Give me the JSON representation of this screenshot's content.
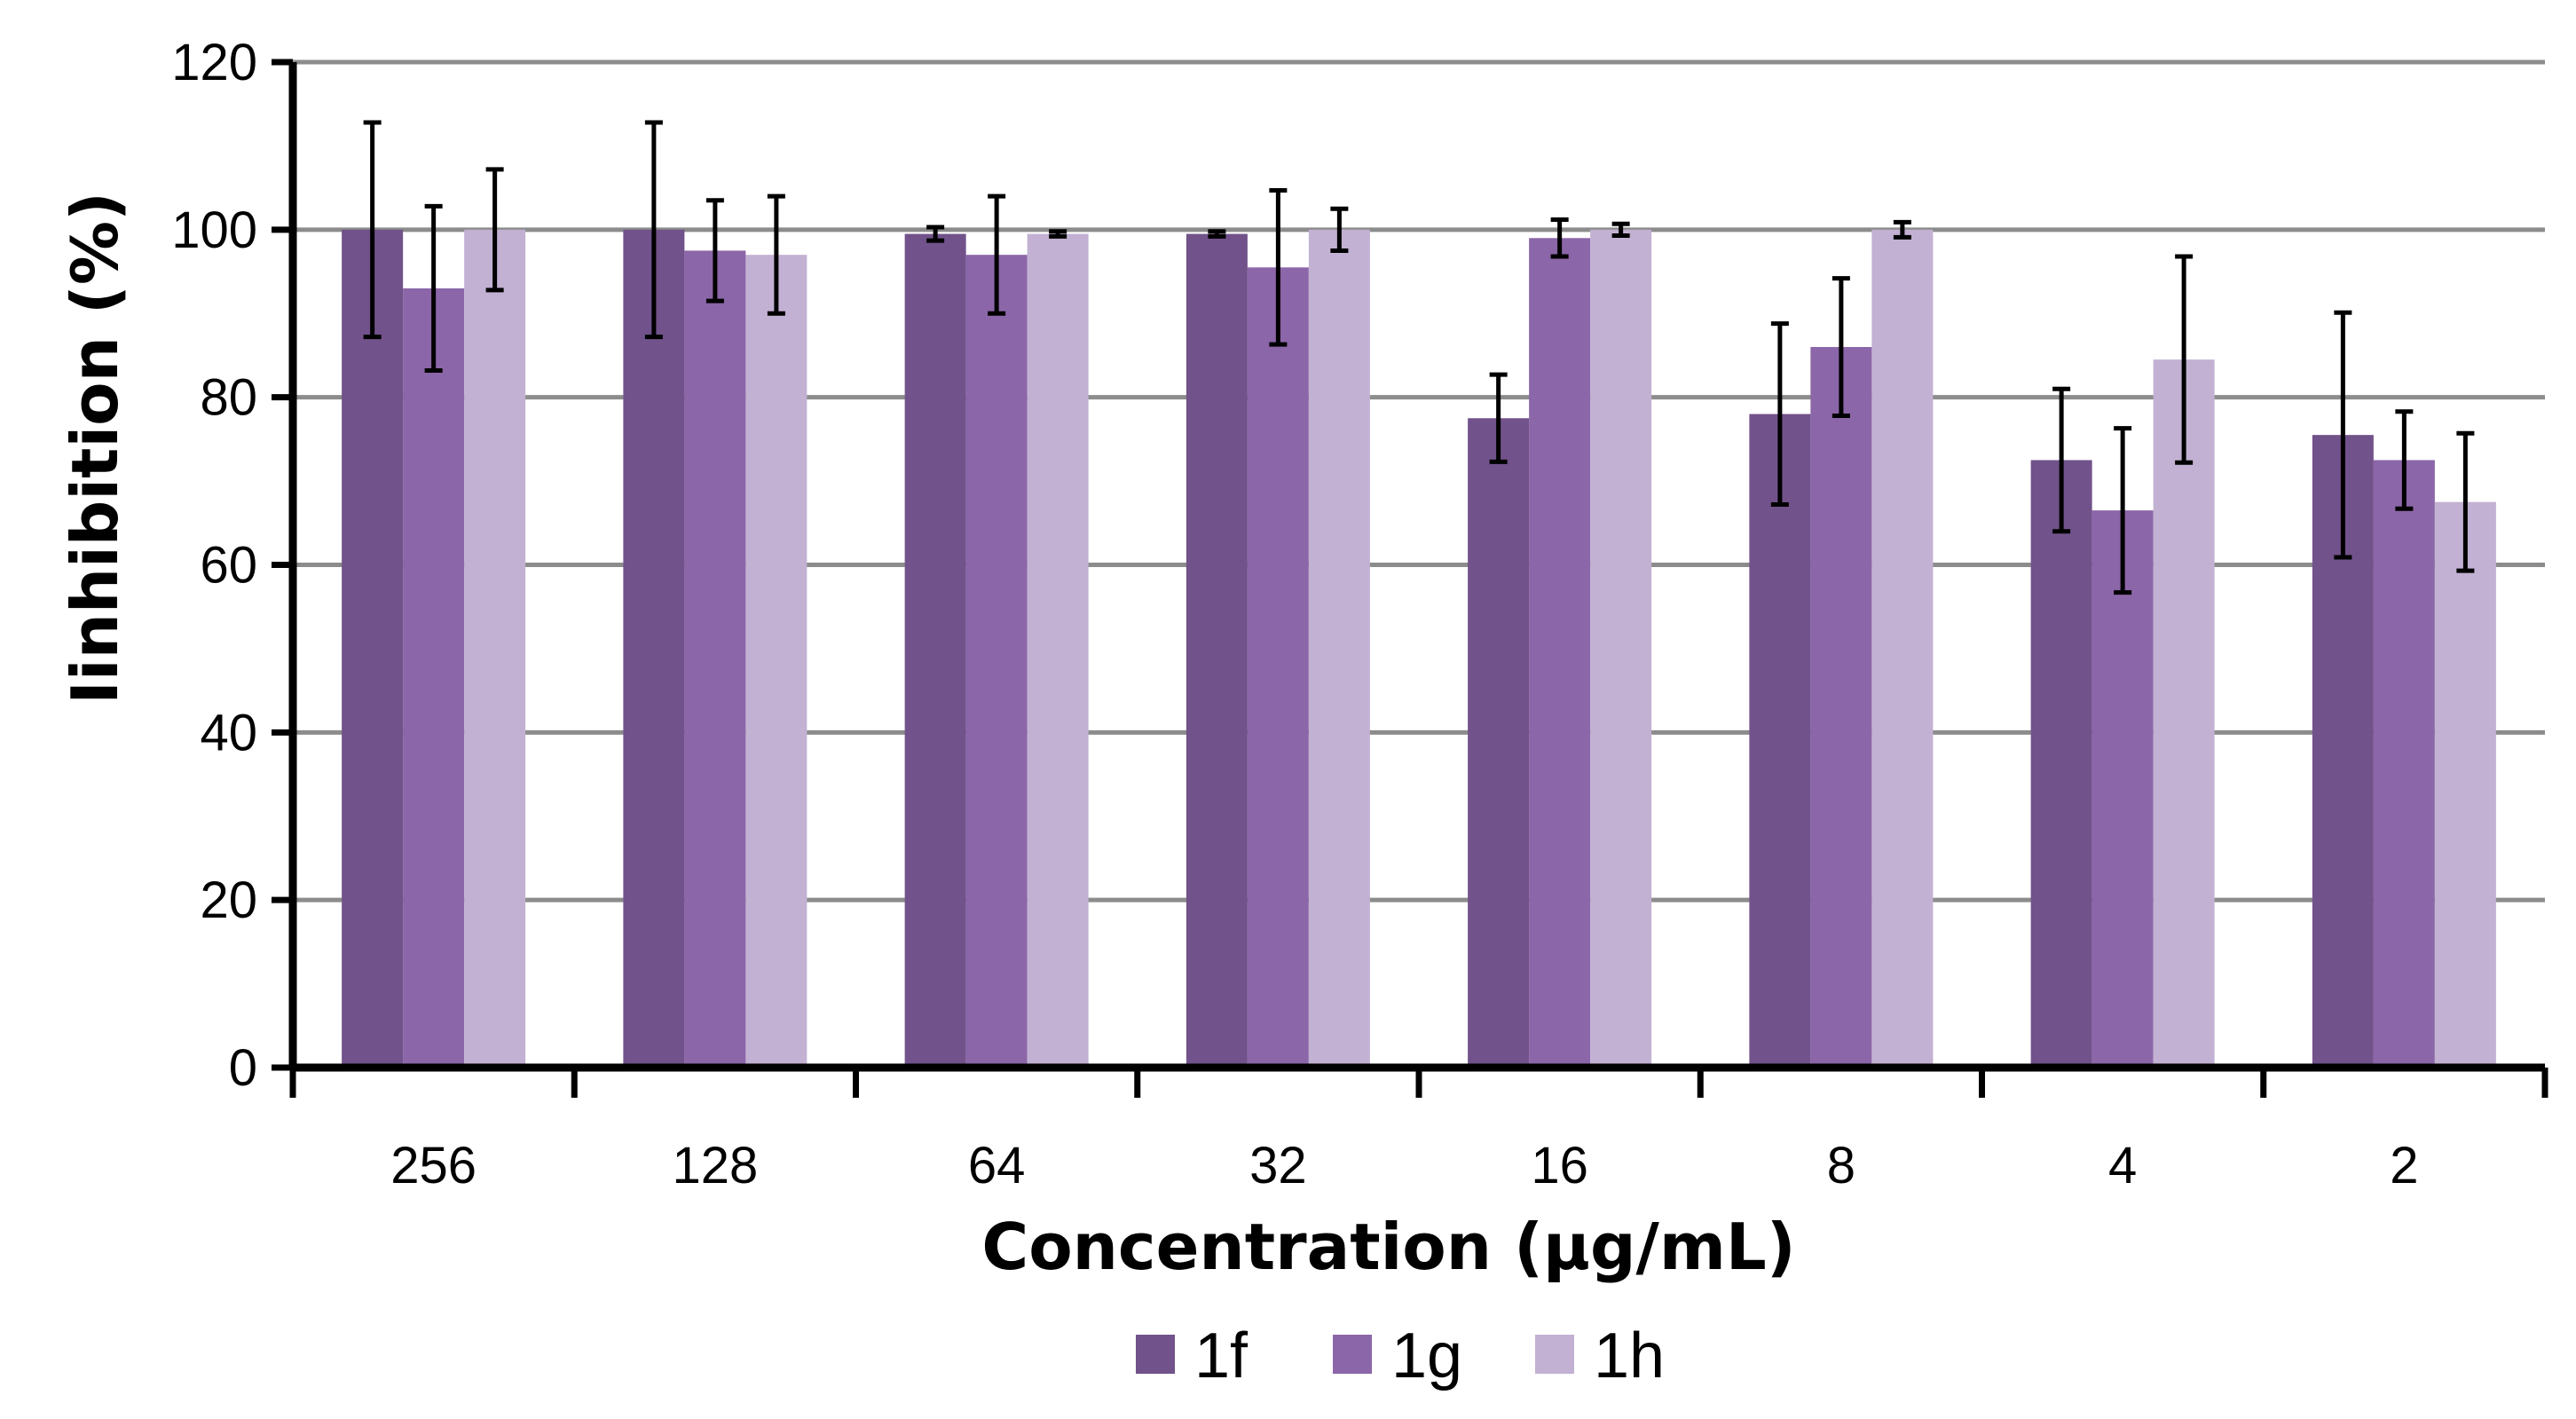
{
  "chart_data": {
    "type": "bar",
    "title": "",
    "xlabel": "Concentration (µg/mL)",
    "ylabel": "Iinhibition (%)",
    "ylim": [
      0,
      120
    ],
    "yticks": [
      "0",
      "20",
      "40",
      "60",
      "80",
      "100",
      "120"
    ],
    "ytick_values": [
      0,
      20,
      40,
      60,
      80,
      100,
      120
    ],
    "grid": true,
    "legend_position": "bottom",
    "categories": [
      "256",
      "128",
      "64",
      "32",
      "16",
      "8",
      "4",
      "2"
    ],
    "series": [
      {
        "name": "1f",
        "color": "#71528a",
        "values": [
          100,
          100,
          99.5,
          99.5,
          77.5,
          78,
          72.5,
          75.5
        ],
        "errors": [
          12.8,
          12.8,
          0.8,
          0.3,
          5.2,
          10.8,
          8.5,
          14.6
        ]
      },
      {
        "name": "1g",
        "color": "#8b66a8",
        "values": [
          93,
          97.5,
          97,
          95.5,
          99,
          86,
          66.5,
          72.5
        ],
        "errors": [
          9.8,
          6,
          7,
          9.2,
          2.2,
          8.2,
          9.8,
          5.8
        ]
      },
      {
        "name": "1h",
        "color": "#c2b1d2",
        "values": [
          100,
          97,
          99.5,
          100,
          100,
          100,
          84.5,
          67.5
        ],
        "errors": [
          7.2,
          7,
          0.3,
          2.5,
          0.7,
          0.9,
          12.3,
          8.2
        ]
      }
    ]
  }
}
